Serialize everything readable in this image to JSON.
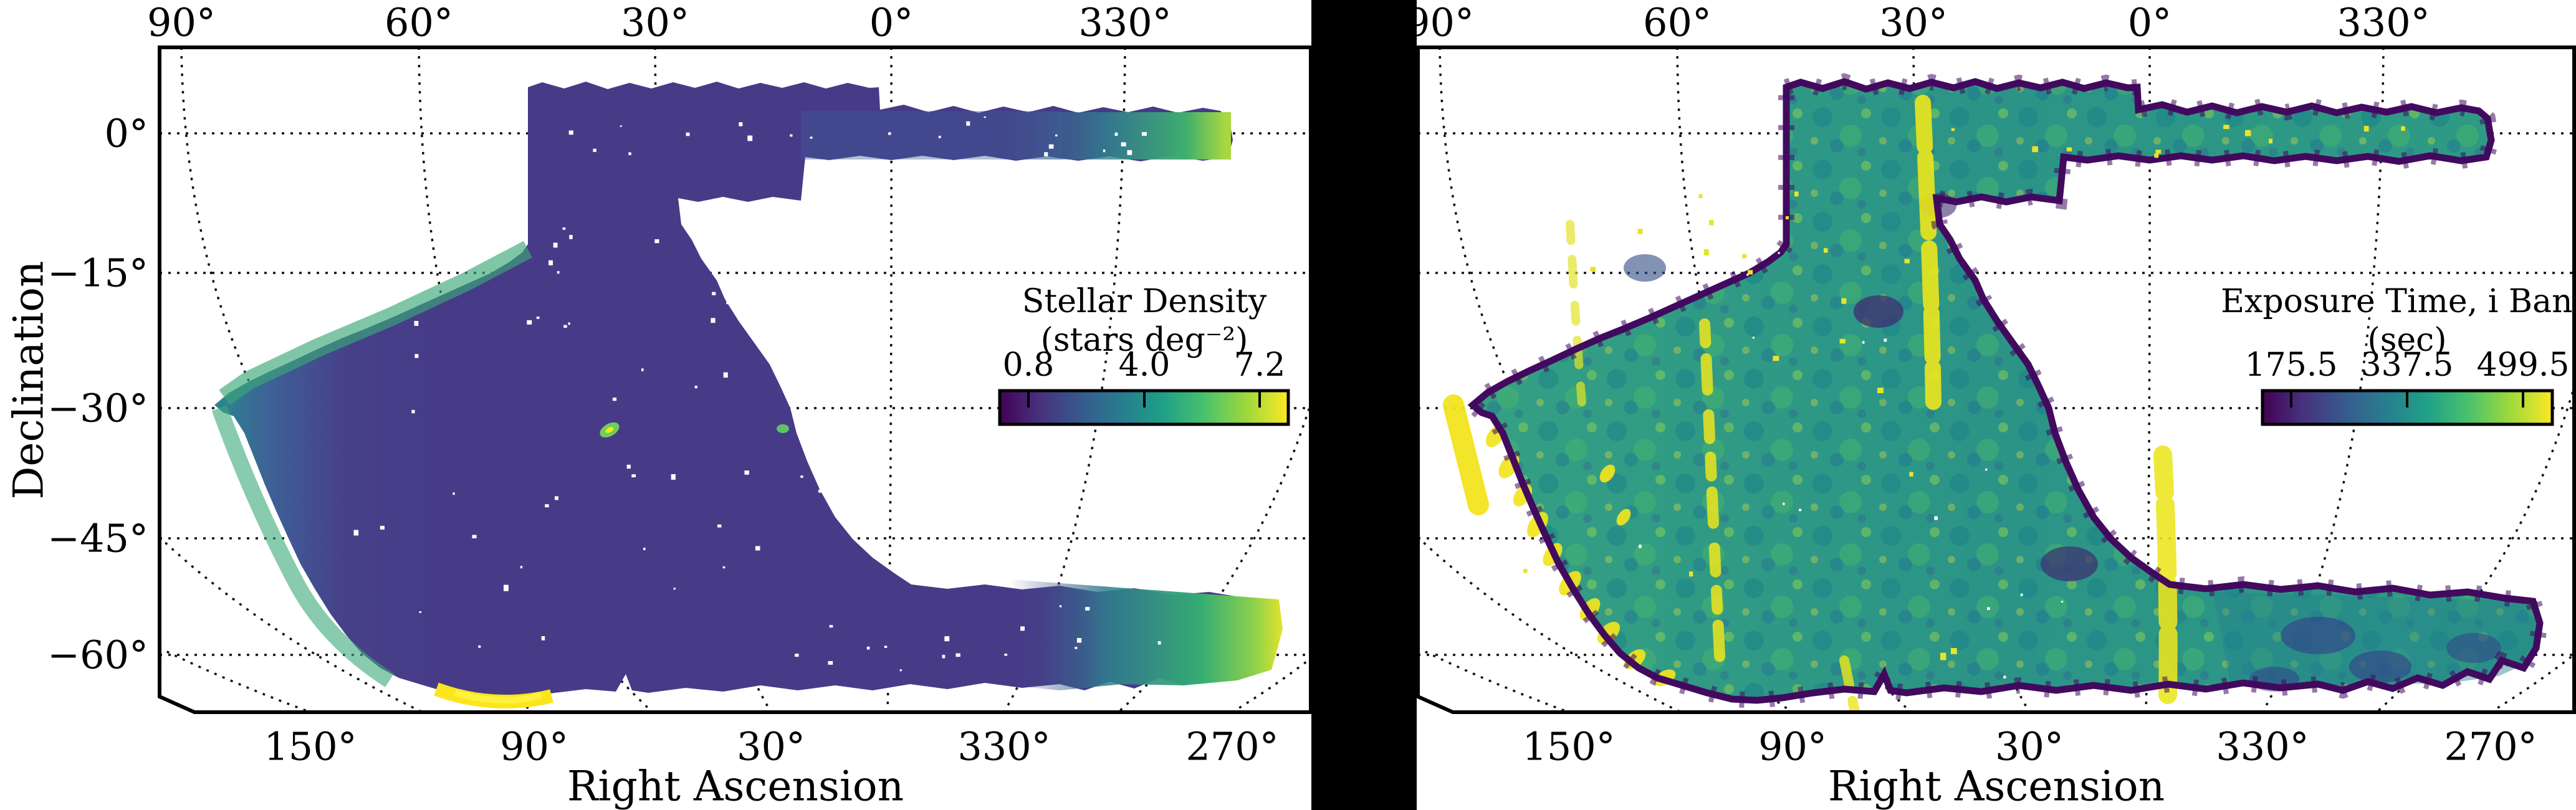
{
  "left_panel": {
    "top_ticks": [
      "90°",
      "60°",
      "30°",
      "0°",
      "330°"
    ],
    "bottom_ticks": [
      "150°",
      "90°",
      "30°",
      "330°",
      "270°"
    ],
    "dec_ticks": [
      "0°",
      "−15°",
      "−30°",
      "−45°",
      "−60°"
    ],
    "x_axis_label": "Right Ascension",
    "y_axis_label": "Declination",
    "colorbar": {
      "title": "Stellar Density",
      "units": "(stars deg⁻²)",
      "ticks": [
        "0.8",
        "4.0",
        "7.2"
      ]
    }
  },
  "right_panel": {
    "top_ticks": [
      "90°",
      "60°",
      "30°",
      "0°",
      "330°"
    ],
    "bottom_ticks": [
      "150°",
      "90°",
      "30°",
      "330°",
      "270°"
    ],
    "x_axis_label": "Right Ascension",
    "colorbar": {
      "title": "Exposure Time, i Band",
      "units": "(sec)",
      "ticks": [
        "175.5",
        "337.5",
        "499.5"
      ]
    }
  },
  "colors": {
    "background": "#ffffff",
    "divider": "#000000",
    "viridis_low": "#440154",
    "viridis_mid": "#21918c",
    "viridis_high": "#fde725",
    "left_map_base": "#473b88",
    "right_map_base": "#2c9486"
  },
  "chart_data": [
    {
      "type": "heatmap",
      "title": "Stellar Density",
      "units": "stars deg⁻²",
      "colormap": "viridis",
      "colorbar_ticks": [
        0.8,
        4.0,
        7.2
      ],
      "colorbar_range": [
        0.0,
        8.0
      ],
      "projection": "equal-area sky projection (pseudocylindrical), RA increasing leftward",
      "x_axis": {
        "label": "Right Ascension",
        "top_ticks_deg": [
          90,
          60,
          30,
          0,
          330
        ],
        "bottom_ticks_deg": [
          150,
          90,
          30,
          330,
          270
        ]
      },
      "y_axis": {
        "label": "Declination",
        "ticks_deg": [
          0,
          -15,
          -30,
          -45,
          -60
        ]
      },
      "legend_position": "inset upper-right",
      "grid": true,
      "description": "Survey footprint map: density mostly ~1-2 stars/deg² (dark purple) over interior; rises to ~5-8 (green-yellow) along western and eastern edges near the Galactic plane, bright yellow arc near LMC at bottom-left (~RA 80°, Dec −62°), green eastern end of the Dec 0° stripe (~RA 300°-330°), and two compact stellar systems near (RA 40°, Dec −34°) and (RA 54°, Dec −34°)."
    },
    {
      "type": "heatmap",
      "title": "Exposure Time, i Band",
      "units": "sec",
      "colormap": "viridis",
      "colorbar_ticks": [
        175.5,
        337.5,
        499.5
      ],
      "colorbar_range": [
        90,
        580
      ],
      "projection": "equal-area sky projection (pseudocylindrical), RA increasing leftward",
      "x_axis": {
        "label": "Right Ascension",
        "top_ticks_deg": [
          90,
          60,
          30,
          0,
          330
        ],
        "bottom_ticks_deg": [
          150,
          90,
          30,
          330,
          270
        ]
      },
      "y_axis": {
        "label": "Declination",
        "ticks_deg": [
          0,
          -15,
          -30,
          -45,
          -60
        ]
      },
      "legend_position": "inset upper-right",
      "grid": true,
      "description": "Same footprint: mottled teal/green (~300-400 s typical), dark-purple low-exposure scalloped tile borders around the outline, bright yellow high-exposure (~500 s) streaks along meridian-aligned bands and along the southwestern edge, darker patch in the southeastern region."
    }
  ]
}
